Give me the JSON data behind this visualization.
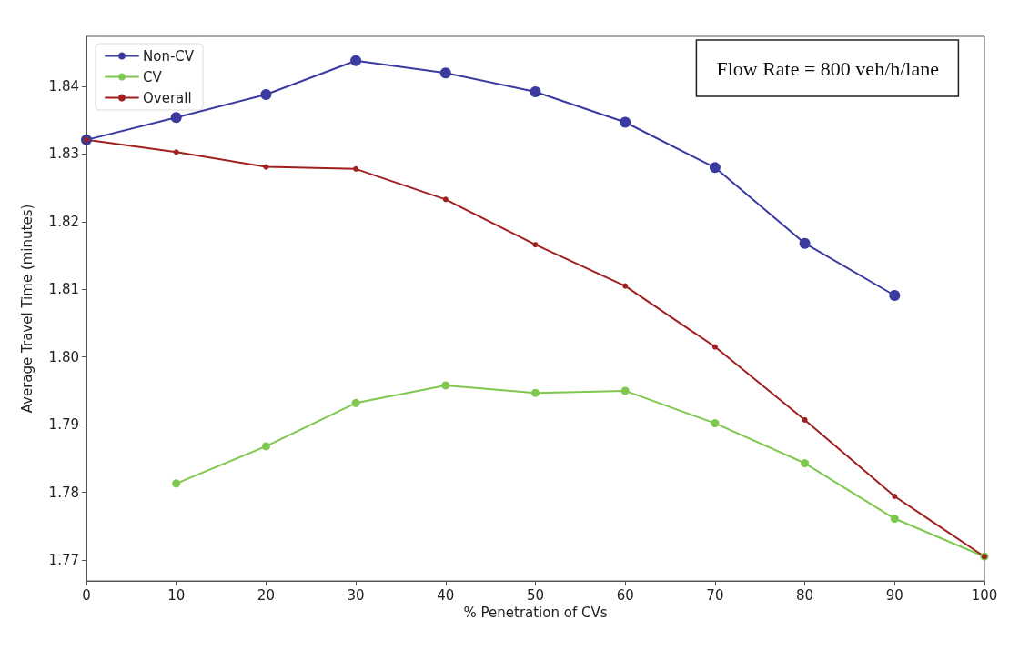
{
  "chart_data": {
    "type": "line",
    "xlabel": "% Penetration of CVs",
    "ylabel": "Average Travel Time (minutes)",
    "x": [
      0,
      10,
      20,
      30,
      40,
      50,
      60,
      70,
      80,
      90,
      100
    ],
    "series": [
      {
        "name": "Non-CV",
        "color": "#3a3aa0",
        "values": [
          1.8321,
          1.8354,
          1.8388,
          1.8438,
          1.842,
          1.8392,
          1.8347,
          1.828,
          1.8168,
          1.8091,
          null
        ]
      },
      {
        "name": "CV",
        "color": "#7ec850",
        "values": [
          null,
          1.7813,
          1.7868,
          1.7932,
          1.7958,
          1.7947,
          1.795,
          1.7902,
          1.7843,
          1.7761,
          1.7705
        ]
      },
      {
        "name": "Overall",
        "color": "#a02020",
        "values": [
          1.8321,
          1.8303,
          1.8281,
          1.8278,
          1.8233,
          1.8166,
          1.8105,
          1.8015,
          1.7907,
          1.7794,
          1.7705
        ]
      }
    ],
    "xlim": [
      0,
      100
    ],
    "xticks": [
      0,
      10,
      20,
      30,
      40,
      50,
      60,
      70,
      80,
      90,
      100
    ],
    "ylim": [
      1.7669,
      1.8474
    ],
    "yticks": [
      1.77,
      1.78,
      1.79,
      {
        "value": 1.8,
        "label": "1.80"
      },
      1.81,
      1.82,
      1.83,
      1.84
    ],
    "annotations": [
      "Flow Rate = 800 veh/h/lane"
    ],
    "legend": "top left",
    "marker": "circle",
    "line_style": "solid",
    "grid": false
  }
}
